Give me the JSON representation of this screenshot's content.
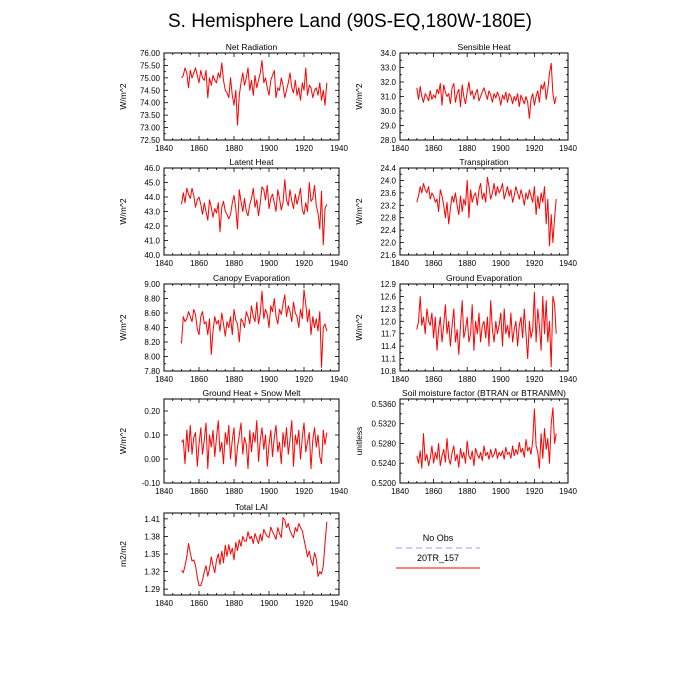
{
  "page_title": "S. Hemisphere Land (90S-EQ,180W-180E)",
  "legend": {
    "entries": [
      {
        "label": "No Obs",
        "color": "#9999ff",
        "style": "dashed"
      },
      {
        "label": "20TR_157",
        "color": "#ff0000",
        "style": "solid"
      }
    ]
  },
  "chart_data": [
    {
      "type": "line",
      "title": "Net Radiation",
      "ylabel": "W/m^2",
      "xlim": [
        1840,
        1940
      ],
      "xticks": [
        1840,
        1860,
        1880,
        1900,
        1920,
        1940
      ],
      "ylim": [
        72.5,
        76.0
      ],
      "yticks": [
        "72.50",
        "73.00",
        "73.50",
        "74.00",
        "74.50",
        "75.00",
        "75.50",
        "76.00"
      ],
      "series": [
        {
          "name": "20TR_157",
          "x_start": 1850,
          "values": [
            75.0,
            75.1,
            75.4,
            75.2,
            74.6,
            75.3,
            75.0,
            75.2,
            75.4,
            75.1,
            74.8,
            75.3,
            75.0,
            74.9,
            75.3,
            74.2,
            75.0,
            74.7,
            75.1,
            74.9,
            74.8,
            75.2,
            75.0,
            75.6,
            74.9,
            74.5,
            74.4,
            74.2,
            75.0,
            74.3,
            73.9,
            74.5,
            73.1,
            74.3,
            74.8,
            75.2,
            74.7,
            75.0,
            75.4,
            74.5,
            74.9,
            74.3,
            75.1,
            74.6,
            74.9,
            75.2,
            75.7,
            74.8,
            75.0,
            74.6,
            74.3,
            74.9,
            75.1,
            75.3,
            74.2,
            74.6,
            74.5,
            75.0,
            74.7,
            74.2,
            74.5,
            74.8,
            75.2,
            74.6,
            74.4,
            74.9,
            74.3,
            74.6,
            74.1,
            74.8,
            74.5,
            75.4,
            74.3,
            74.7,
            74.6,
            74.2,
            74.5,
            74.6,
            74.3,
            74.8,
            74.1,
            74.5,
            73.9,
            74.8
          ]
        }
      ]
    },
    {
      "type": "line",
      "title": "Sensible Heat",
      "ylabel": "W/m^2",
      "xlim": [
        1840,
        1940
      ],
      "xticks": [
        1840,
        1860,
        1880,
        1900,
        1920,
        1940
      ],
      "ylim": [
        28.0,
        34.0
      ],
      "yticks": [
        "28.0",
        "29.0",
        "30.0",
        "31.0",
        "32.0",
        "33.0",
        "34.0"
      ],
      "series": [
        {
          "name": "20TR_157",
          "x_start": 1850,
          "values": [
            31.6,
            30.8,
            31.7,
            31.0,
            30.6,
            31.2,
            31.0,
            30.7,
            31.4,
            30.8,
            31.1,
            30.9,
            31.5,
            31.2,
            31.9,
            30.4,
            31.8,
            31.3,
            31.0,
            31.2,
            30.5,
            31.6,
            31.9,
            30.6,
            31.2,
            31.5,
            30.3,
            31.8,
            31.0,
            30.5,
            31.3,
            32.0,
            31.1,
            31.4,
            30.8,
            31.2,
            31.5,
            30.7,
            31.0,
            31.3,
            31.6,
            31.2,
            30.8,
            31.4,
            31.1,
            30.6,
            31.2,
            30.9,
            31.3,
            31.0,
            30.4,
            31.1,
            30.8,
            31.3,
            30.6,
            31.2,
            31.0,
            30.5,
            31.0,
            30.7,
            31.2,
            30.3,
            31.1,
            30.8,
            30.5,
            31.0,
            30.6,
            29.5,
            30.8,
            31.2,
            30.4,
            31.0,
            31.4,
            30.6,
            31.8,
            31.5,
            32.0,
            30.8,
            31.5,
            32.6,
            33.3,
            31.2,
            30.5,
            31.0
          ]
        }
      ]
    },
    {
      "type": "line",
      "title": "Latent Heat",
      "ylabel": "W/m^2",
      "xlim": [
        1840,
        1940
      ],
      "xticks": [
        1840,
        1860,
        1880,
        1900,
        1920,
        1940
      ],
      "ylim": [
        40.0,
        46.0
      ],
      "yticks": [
        "40.0",
        "41.0",
        "42.0",
        "43.0",
        "44.0",
        "45.0",
        "46.0"
      ],
      "series": [
        {
          "name": "20TR_157",
          "x_start": 1850,
          "values": [
            43.5,
            44.3,
            43.6,
            44.6,
            44.2,
            43.9,
            44.6,
            44.1,
            43.3,
            43.8,
            44.0,
            43.5,
            42.8,
            43.6,
            43.0,
            42.4,
            43.8,
            43.3,
            42.6,
            43.2,
            42.9,
            43.6,
            41.6,
            43.3,
            43.7,
            43.0,
            42.8,
            42.5,
            42.8,
            43.6,
            44.1,
            43.2,
            41.8,
            44.5,
            43.7,
            43.0,
            43.9,
            43.0,
            42.7,
            43.5,
            43.9,
            44.6,
            43.3,
            43.8,
            42.7,
            43.6,
            44.7,
            44.5,
            43.8,
            44.8,
            43.2,
            43.9,
            44.2,
            43.6,
            43.0,
            44.5,
            43.9,
            43.1,
            43.6,
            45.2,
            43.8,
            43.4,
            44.5,
            43.7,
            43.2,
            44.2,
            43.5,
            44.0,
            44.6,
            43.1,
            42.8,
            43.6,
            43.0,
            45.0,
            43.7,
            43.9,
            44.8,
            43.4,
            42.9,
            41.8,
            44.4,
            40.7,
            43.2,
            43.5
          ]
        }
      ]
    },
    {
      "type": "line",
      "title": "Transpiration",
      "ylabel": "W/m^2",
      "xlim": [
        1840,
        1940
      ],
      "xticks": [
        1840,
        1860,
        1880,
        1900,
        1920,
        1940
      ],
      "ylim": [
        21.6,
        24.4
      ],
      "yticks": [
        "21.6",
        "22.0",
        "22.4",
        "22.8",
        "23.2",
        "23.6",
        "24.0",
        "24.4"
      ],
      "series": [
        {
          "name": "20TR_157",
          "x_start": 1850,
          "values": [
            23.3,
            23.5,
            23.8,
            23.6,
            23.9,
            23.7,
            23.6,
            23.8,
            23.4,
            23.6,
            23.5,
            23.3,
            23.4,
            23.0,
            23.7,
            23.5,
            23.2,
            22.8,
            23.3,
            22.6,
            23.1,
            23.5,
            23.3,
            23.6,
            23.2,
            22.9,
            23.5,
            23.0,
            23.4,
            23.2,
            24.0,
            22.8,
            23.7,
            23.3,
            23.5,
            23.6,
            23.2,
            23.7,
            23.9,
            23.4,
            23.6,
            23.3,
            24.1,
            23.8,
            23.4,
            23.6,
            23.9,
            23.5,
            23.8,
            23.6,
            23.7,
            23.9,
            23.4,
            23.6,
            23.8,
            23.5,
            23.7,
            23.3,
            23.5,
            23.8,
            23.6,
            23.4,
            23.7,
            23.5,
            23.2,
            23.6,
            23.4,
            23.7,
            23.5,
            23.3,
            23.8,
            22.9,
            23.5,
            23.1,
            23.6,
            23.3,
            23.8,
            22.6,
            23.4,
            21.9,
            22.9,
            22.0,
            22.8,
            23.4
          ]
        }
      ]
    },
    {
      "type": "line",
      "title": "Canopy Evaporation",
      "ylabel": "W/m^2",
      "xlim": [
        1840,
        1940
      ],
      "xticks": [
        1840,
        1860,
        1880,
        1900,
        1920,
        1940
      ],
      "ylim": [
        7.8,
        9.0
      ],
      "yticks": [
        "7.80",
        "8.00",
        "8.20",
        "8.40",
        "8.60",
        "8.80",
        "9.00"
      ],
      "series": [
        {
          "name": "20TR_157",
          "x_start": 1850,
          "values": [
            8.18,
            8.55,
            8.48,
            8.52,
            8.62,
            8.55,
            8.48,
            8.65,
            8.58,
            8.38,
            8.3,
            8.55,
            8.62,
            8.45,
            8.48,
            8.3,
            8.52,
            8.03,
            8.35,
            8.55,
            8.45,
            8.5,
            8.35,
            8.6,
            8.45,
            8.28,
            8.48,
            8.4,
            8.55,
            8.3,
            8.65,
            8.5,
            8.45,
            8.2,
            8.52,
            8.48,
            8.4,
            8.62,
            8.55,
            8.45,
            8.7,
            8.55,
            8.48,
            8.75,
            8.45,
            8.6,
            8.9,
            8.52,
            8.65,
            8.58,
            8.4,
            8.7,
            8.62,
            8.8,
            8.55,
            8.45,
            8.65,
            8.58,
            8.72,
            8.85,
            8.55,
            8.7,
            8.62,
            8.48,
            8.75,
            8.6,
            8.55,
            8.4,
            8.65,
            8.52,
            8.92,
            8.72,
            8.48,
            8.65,
            8.3,
            8.55,
            8.4,
            8.52,
            8.35,
            8.62,
            7.85,
            8.4,
            8.45,
            8.35
          ]
        }
      ]
    },
    {
      "type": "line",
      "title": "Ground Evaporation",
      "ylabel": "W/m^2",
      "xlim": [
        1840,
        1940
      ],
      "xticks": [
        1840,
        1860,
        1880,
        1900,
        1920,
        1940
      ],
      "ylim": [
        10.8,
        12.9
      ],
      "yticks": [
        "10.8",
        "11.1",
        "11.4",
        "11.7",
        "12.0",
        "12.3",
        "12.6",
        "12.9"
      ],
      "series": [
        {
          "name": "20TR_157",
          "x_start": 1850,
          "values": [
            11.8,
            12.0,
            12.6,
            11.9,
            12.1,
            11.7,
            12.3,
            12.0,
            11.9,
            12.2,
            11.6,
            12.1,
            11.3,
            11.8,
            12.1,
            11.5,
            11.9,
            12.4,
            11.7,
            12.0,
            11.4,
            11.9,
            12.3,
            11.5,
            11.8,
            11.2,
            11.9,
            12.5,
            11.6,
            11.8,
            12.1,
            11.5,
            11.7,
            12.4,
            11.3,
            12.0,
            11.7,
            12.2,
            11.5,
            11.9,
            12.0,
            11.6,
            12.1,
            11.4,
            12.5,
            11.8,
            11.5,
            12.0,
            11.7,
            11.9,
            12.2,
            11.4,
            12.3,
            11.7,
            11.9,
            11.6,
            12.2,
            11.5,
            11.8,
            12.0,
            11.4,
            11.9,
            12.1,
            11.6,
            12.3,
            11.7,
            11.1,
            12.0,
            11.6,
            11.8,
            12.7,
            11.5,
            12.3,
            11.9,
            11.3,
            12.6,
            11.7,
            12.5,
            11.5,
            12.0,
            10.9,
            12.6,
            12.4,
            11.7
          ]
        }
      ]
    },
    {
      "type": "line",
      "title": "Ground Heat + Snow Melt",
      "ylabel": "W/m^2",
      "xlim": [
        1840,
        1940
      ],
      "xticks": [
        1840,
        1860,
        1880,
        1900,
        1920,
        1940
      ],
      "ylim": [
        -0.1,
        0.25
      ],
      "yticks": [
        "-0.10",
        "0.00",
        "0.10",
        "0.20"
      ],
      "series": [
        {
          "name": "20TR_157",
          "x_start": 1850,
          "values": [
            0.07,
            0.08,
            -0.02,
            0.12,
            0.03,
            0.14,
            0.02,
            0.09,
            0.11,
            -0.03,
            0.06,
            0.13,
            0.02,
            0.08,
            0.15,
            -0.04,
            0.1,
            0.05,
            0.12,
            0.01,
            0.09,
            0.16,
            0.03,
            0.07,
            -0.02,
            0.11,
            0.06,
            0.14,
            0.0,
            0.08,
            0.13,
            -0.03,
            0.05,
            0.1,
            0.15,
            0.02,
            0.09,
            0.06,
            -0.04,
            0.12,
            0.03,
            0.11,
            0.07,
            0.16,
            -0.01,
            0.08,
            0.13,
            0.04,
            0.1,
            -0.03,
            0.06,
            0.12,
            0.01,
            0.09,
            0.14,
            0.03,
            0.07,
            -0.02,
            0.11,
            0.05,
            0.13,
            0.02,
            0.08,
            0.16,
            -0.03,
            0.1,
            0.06,
            0.12,
            0.0,
            0.09,
            0.15,
            0.03,
            0.07,
            0.11,
            -0.04,
            0.08,
            0.13,
            0.05,
            0.1,
            0.01,
            -0.02,
            0.12,
            0.06,
            0.11
          ]
        }
      ]
    },
    {
      "type": "line",
      "title": "Soil moisture factor (BTRAN or BTRANMN)",
      "ylabel": "unitless",
      "xlim": [
        1840,
        1940
      ],
      "xticks": [
        1840,
        1860,
        1880,
        1900,
        1920,
        1940
      ],
      "ylim": [
        0.52,
        0.537
      ],
      "yticks": [
        "0.5200",
        "0.5240",
        "0.5280",
        "0.5320",
        "0.5360"
      ],
      "series": [
        {
          "name": "20TR_157",
          "x_start": 1850,
          "values": [
            0.5255,
            0.524,
            0.5265,
            0.523,
            0.53,
            0.5245,
            0.5258,
            0.5235,
            0.525,
            0.5275,
            0.524,
            0.5262,
            0.5248,
            0.528,
            0.5235,
            0.5255,
            0.5268,
            0.5242,
            0.529,
            0.525,
            0.5238,
            0.5262,
            0.5275,
            0.5245,
            0.5258,
            0.5232,
            0.527,
            0.525,
            0.5262,
            0.524,
            0.5285,
            0.5255,
            0.5248,
            0.5265,
            0.5235,
            0.527,
            0.5258,
            0.525,
            0.5262,
            0.5245,
            0.5275,
            0.5255,
            0.5262,
            0.5248,
            0.5268,
            0.5252,
            0.5258,
            0.527,
            0.525,
            0.5262,
            0.5255,
            0.5265,
            0.5248,
            0.5272,
            0.5258,
            0.5262,
            0.525,
            0.5275,
            0.5255,
            0.5268,
            0.5258,
            0.5282,
            0.5262,
            0.527,
            0.5252,
            0.5288,
            0.5265,
            0.5272,
            0.5258,
            0.5285,
            0.535,
            0.5275,
            0.5262,
            0.523,
            0.53,
            0.525,
            0.531,
            0.5268,
            0.529,
            0.524,
            0.532,
            0.5352,
            0.528,
            0.53
          ]
        }
      ]
    },
    {
      "type": "line",
      "title": "Total LAI",
      "ylabel": "m2/m2",
      "xlim": [
        1840,
        1940
      ],
      "xticks": [
        1840,
        1860,
        1880,
        1900,
        1920,
        1940
      ],
      "ylim": [
        1.28,
        1.42
      ],
      "yticks": [
        "1.29",
        "1.32",
        "1.35",
        "1.38",
        "1.41"
      ],
      "series": [
        {
          "name": "20TR_157",
          "x_start": 1850,
          "values": [
            1.322,
            1.318,
            1.33,
            1.345,
            1.368,
            1.352,
            1.338,
            1.34,
            1.33,
            1.31,
            1.296,
            1.296,
            1.305,
            1.32,
            1.33,
            1.312,
            1.325,
            1.345,
            1.33,
            1.318,
            1.34,
            1.35,
            1.332,
            1.355,
            1.335,
            1.365,
            1.346,
            1.366,
            1.35,
            1.36,
            1.34,
            1.37,
            1.356,
            1.374,
            1.363,
            1.38,
            1.372,
            1.372,
            1.388,
            1.376,
            1.38,
            1.368,
            1.385,
            1.376,
            1.368,
            1.384,
            1.372,
            1.392,
            1.385,
            1.38,
            1.378,
            1.396,
            1.388,
            1.382,
            1.375,
            1.395,
            1.385,
            1.378,
            1.412,
            1.408,
            1.395,
            1.402,
            1.39,
            1.383,
            1.378,
            1.395,
            1.388,
            1.402,
            1.395,
            1.39,
            1.375,
            1.36,
            1.345,
            1.355,
            1.34,
            1.33,
            1.352,
            1.342,
            1.312,
            1.32,
            1.316,
            1.33,
            1.368,
            1.405
          ]
        }
      ]
    }
  ]
}
